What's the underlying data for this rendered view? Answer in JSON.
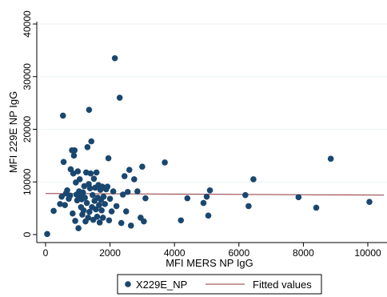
{
  "chart_data": {
    "type": "scatter",
    "xlabel": "MFI MERS NP IgG",
    "ylabel": "MFI 229E NP IgG",
    "xlim": [
      0,
      10500
    ],
    "ylim": [
      0,
      40000
    ],
    "x_ticks": [
      0,
      2000,
      4000,
      6000,
      8000,
      10000
    ],
    "y_ticks": [
      0,
      10000,
      20000,
      30000,
      40000
    ],
    "x_tick_labels": [
      "0",
      "2000",
      "4000",
      "6000",
      "8000",
      "10000"
    ],
    "y_tick_labels": [
      "0",
      "10000",
      "20000",
      "30000",
      "40000"
    ],
    "grid": "horizontal",
    "legend_position": "bottom",
    "colors": {
      "points": "#1a476f",
      "fit": "#90353b",
      "grid": "#eaf2f3",
      "axis": "#000000"
    },
    "series": [
      {
        "name": "X229E_NP",
        "kind": "scatter",
        "points": [
          [
            50,
            100
          ],
          [
            250,
            4500
          ],
          [
            450,
            5800
          ],
          [
            500,
            7200
          ],
          [
            540,
            22600
          ],
          [
            560,
            13800
          ],
          [
            600,
            5600
          ],
          [
            630,
            7800
          ],
          [
            670,
            8400
          ],
          [
            720,
            6800
          ],
          [
            760,
            7400
          ],
          [
            780,
            12400
          ],
          [
            820,
            16000
          ],
          [
            840,
            4000
          ],
          [
            860,
            11600
          ],
          [
            880,
            15000
          ],
          [
            900,
            16000
          ],
          [
            920,
            2600
          ],
          [
            940,
            9900
          ],
          [
            960,
            7600
          ],
          [
            980,
            6500
          ],
          [
            1000,
            12000
          ],
          [
            1020,
            1200
          ],
          [
            1040,
            8200
          ],
          [
            1060,
            10500
          ],
          [
            1080,
            7300
          ],
          [
            1100,
            5200
          ],
          [
            1120,
            6700
          ],
          [
            1140,
            3800
          ],
          [
            1160,
            8000
          ],
          [
            1180,
            4600
          ],
          [
            1200,
            9200
          ],
          [
            1220,
            7000
          ],
          [
            1240,
            2500
          ],
          [
            1260,
            11800
          ],
          [
            1280,
            6000
          ],
          [
            1300,
            16600
          ],
          [
            1320,
            3200
          ],
          [
            1340,
            9600
          ],
          [
            1350,
            23700
          ],
          [
            1360,
            4300
          ],
          [
            1380,
            8800
          ],
          [
            1400,
            11600
          ],
          [
            1420,
            17700
          ],
          [
            1440,
            5200
          ],
          [
            1460,
            7500
          ],
          [
            1480,
            2800
          ],
          [
            1500,
            10600
          ],
          [
            1520,
            6400
          ],
          [
            1540,
            8900
          ],
          [
            1560,
            4800
          ],
          [
            1580,
            11800
          ],
          [
            1600,
            3400
          ],
          [
            1620,
            7000
          ],
          [
            1640,
            9400
          ],
          [
            1660,
            5600
          ],
          [
            1680,
            2300
          ],
          [
            1700,
            8500
          ],
          [
            1720,
            6600
          ],
          [
            1740,
            4600
          ],
          [
            1760,
            9100
          ],
          [
            1780,
            3200
          ],
          [
            1800,
            7200
          ],
          [
            1840,
            5800
          ],
          [
            1880,
            8600
          ],
          [
            1920,
            9100
          ],
          [
            1950,
            14500
          ],
          [
            1970,
            2700
          ],
          [
            2000,
            6800
          ],
          [
            2050,
            4400
          ],
          [
            2100,
            8200
          ],
          [
            2150,
            33500
          ],
          [
            2200,
            5400
          ],
          [
            2300,
            26000
          ],
          [
            2350,
            2200
          ],
          [
            2400,
            7600
          ],
          [
            2450,
            11100
          ],
          [
            2500,
            4400
          ],
          [
            2550,
            8100
          ],
          [
            2600,
            12300
          ],
          [
            2650,
            1700
          ],
          [
            2750,
            10500
          ],
          [
            2850,
            8200
          ],
          [
            2950,
            3200
          ],
          [
            3000,
            12900
          ],
          [
            3050,
            2500
          ],
          [
            3100,
            6900
          ],
          [
            3700,
            13700
          ],
          [
            4200,
            2700
          ],
          [
            4400,
            6900
          ],
          [
            4900,
            6000
          ],
          [
            5000,
            7200
          ],
          [
            5050,
            3600
          ],
          [
            5100,
            8400
          ],
          [
            6200,
            7500
          ],
          [
            6300,
            5400
          ],
          [
            6450,
            10500
          ],
          [
            7850,
            7100
          ],
          [
            8400,
            5100
          ],
          [
            8850,
            14400
          ],
          [
            10050,
            6200
          ]
        ]
      },
      {
        "name": "Fitted values",
        "kind": "line",
        "points": [
          [
            0,
            7800
          ],
          [
            10500,
            7500
          ]
        ]
      }
    ]
  }
}
